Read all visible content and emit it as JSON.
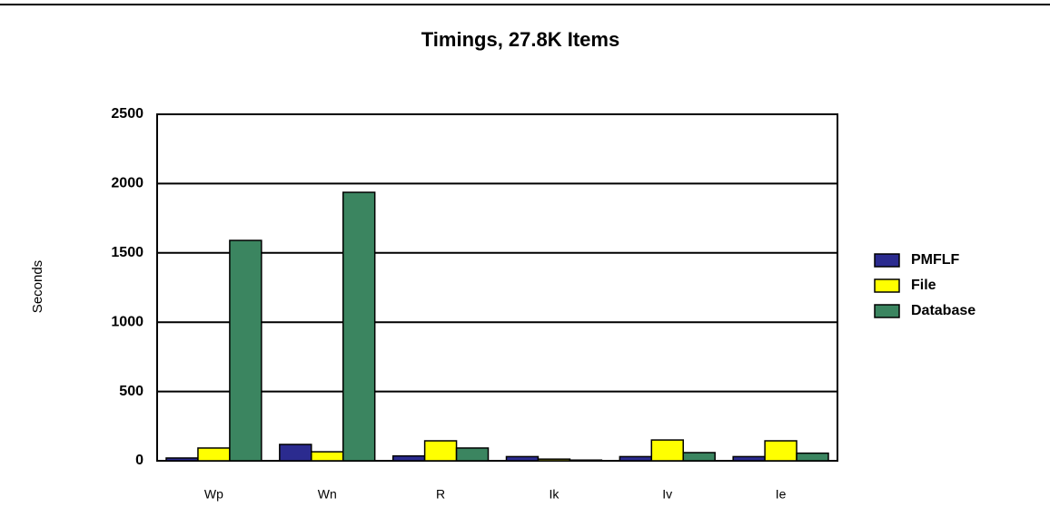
{
  "chart_data": {
    "type": "bar",
    "title": "Timings, 27.8K Items",
    "y_label": "Seconds",
    "categories": [
      "Wp",
      "Wn",
      "R",
      "Ik",
      "Iv",
      "Ie"
    ],
    "series": [
      {
        "name": "PMFLF",
        "color": "#2b2b8f",
        "values": [
          20,
          118,
          35,
          30,
          30,
          30
        ]
      },
      {
        "name": "File",
        "color": "#ffff00",
        "values": [
          92,
          65,
          144,
          12,
          150,
          144
        ]
      },
      {
        "name": "Database",
        "color": "#3b8560",
        "values": [
          1590,
          1937,
          92,
          5,
          59,
          55
        ]
      }
    ],
    "ylim": [
      0,
      2500
    ],
    "yticks": [
      0,
      500,
      1000,
      1500,
      2000,
      2500
    ],
    "grid": true,
    "legend": "right"
  }
}
